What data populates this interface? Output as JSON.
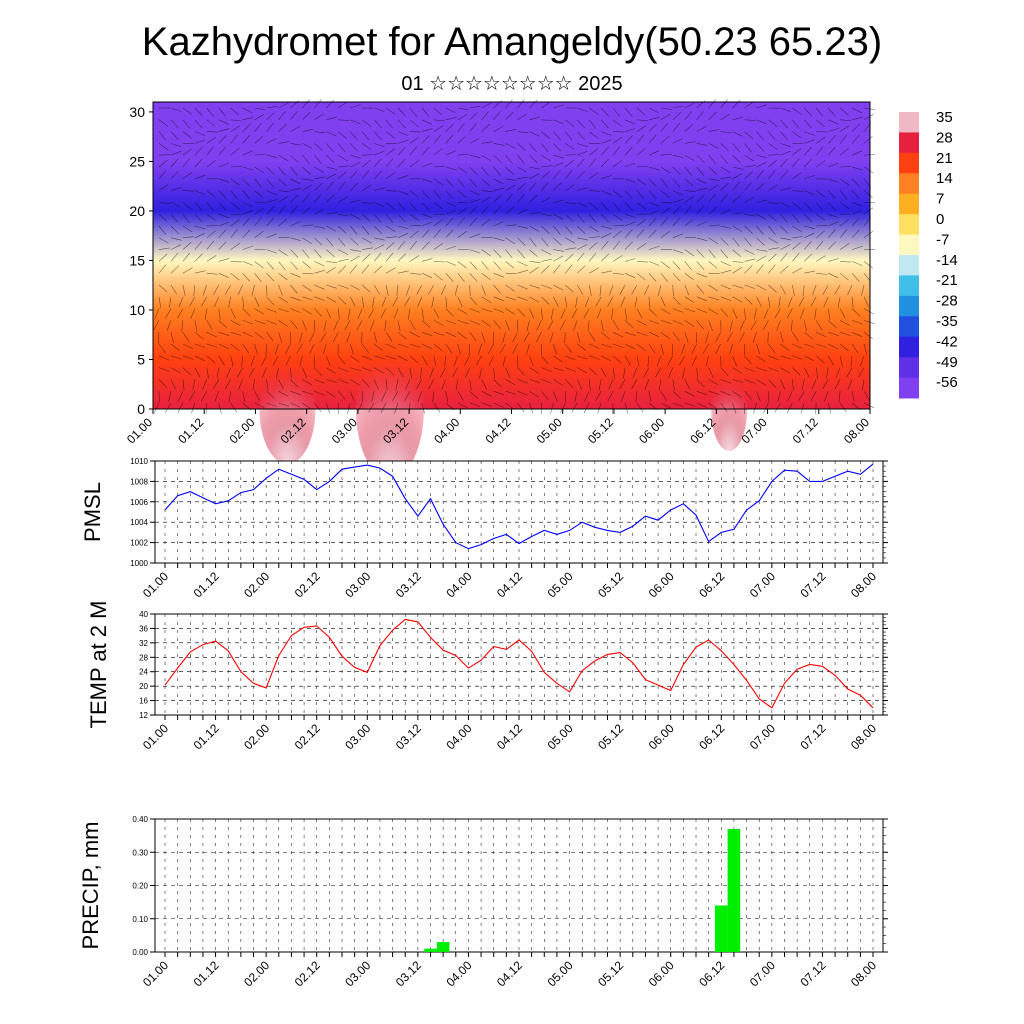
{
  "title": "Kazhydromet for Amangeldy(50.23 65.23)",
  "subtitle": "01 ☆☆☆☆☆☆☆☆ 2025",
  "chart_data": [
    {
      "type": "heatmap",
      "yticks": [
        "0",
        "5",
        "10",
        "15",
        "20",
        "25",
        "30"
      ],
      "ylim": [
        0,
        31
      ],
      "xticks": [
        "01.00",
        "01.12",
        "02.00",
        "02.12",
        "03.00",
        "03.12",
        "04.00",
        "04.12",
        "05.00",
        "05.12",
        "06.00",
        "06.12",
        "07.00",
        "07.12",
        "08.00"
      ],
      "colorbar_labels": [
        "35",
        "28",
        "21",
        "14",
        "7",
        "0",
        "-7",
        "-14",
        "-21",
        "-28",
        "-35",
        "-42",
        "-49",
        "-56"
      ],
      "colorbar_colors": [
        "#f0b8c4",
        "#e82040",
        "#ff4010",
        "#ff8020",
        "#ffb020",
        "#ffe060",
        "#fff8c0",
        "#c0e8f0",
        "#40c0e8",
        "#2090e0",
        "#2050e0",
        "#3020e0",
        "#6030e8",
        "#8040f0"
      ],
      "vertical_profile_temperature": [
        {
          "level": 0,
          "t": 30
        },
        {
          "level": 5,
          "t": 24
        },
        {
          "level": 10,
          "t": 14
        },
        {
          "level": 15,
          "t": -5
        },
        {
          "level": 20,
          "t": -40
        },
        {
          "level": 25,
          "t": -55
        },
        {
          "level": 30,
          "t": -60
        }
      ]
    },
    {
      "type": "line",
      "ylabel": "PMSL",
      "ylim": [
        1000,
        1010
      ],
      "yticks": [
        "1000",
        "1002",
        "1004",
        "1006",
        "1008",
        "1010"
      ],
      "xticks": [
        "01.00",
        "01.12",
        "02.00",
        "02.12",
        "03.00",
        "03.12",
        "04.00",
        "04.12",
        "05.00",
        "05.12",
        "06.00",
        "06.12",
        "07.00",
        "07.12",
        "08.00"
      ],
      "series_color": "#0000ff",
      "values": [
        1005.2,
        1006.6,
        1007.0,
        1006.4,
        1005.8,
        1006.1,
        1006.9,
        1007.2,
        1008.3,
        1009.2,
        1008.7,
        1008.2,
        1007.2,
        1008.0,
        1009.2,
        1009.4,
        1009.6,
        1009.3,
        1008.5,
        1006.3,
        1004.6,
        1006.3,
        1003.8,
        1002.0,
        1001.4,
        1001.8,
        1002.4,
        1002.8,
        1001.9,
        1002.6,
        1003.2,
        1002.8,
        1003.2,
        1004.0,
        1003.5,
        1003.2,
        1003.0,
        1003.6,
        1004.6,
        1004.2,
        1005.2,
        1005.8,
        1004.7,
        1002.1,
        1003.0,
        1003.3,
        1005.2,
        1006.1,
        1008.0,
        1009.1,
        1009.0,
        1008.0,
        1008.0,
        1008.5,
        1009.0,
        1008.7,
        1009.7
      ]
    },
    {
      "type": "line",
      "ylabel": "TEMP at 2 M",
      "ylim": [
        12,
        40
      ],
      "yticks": [
        "12",
        "16",
        "20",
        "24",
        "28",
        "32",
        "36",
        "40"
      ],
      "xticks": [
        "01.00",
        "01.12",
        "02.00",
        "02.12",
        "03.00",
        "03.12",
        "04.00",
        "04.12",
        "05.00",
        "05.12",
        "06.00",
        "06.12",
        "07.00",
        "07.12",
        "08.00"
      ],
      "series_color": "#ff0000",
      "values": [
        20.3,
        25.0,
        29.5,
        31.5,
        32.5,
        29.8,
        24.0,
        20.8,
        19.5,
        28.5,
        34.0,
        36.3,
        36.7,
        33.5,
        28.3,
        25.2,
        23.8,
        31.2,
        35.5,
        38.5,
        37.8,
        33.5,
        30.0,
        28.5,
        25.0,
        27.2,
        31.0,
        30.2,
        32.8,
        29.7,
        23.8,
        20.8,
        18.4,
        24.3,
        27.0,
        28.8,
        29.3,
        26.5,
        21.8,
        20.3,
        18.8,
        26.0,
        30.8,
        32.8,
        29.8,
        26.0,
        21.6,
        16.5,
        14.0,
        20.8,
        24.7,
        26.0,
        25.5,
        23.0,
        19.2,
        17.5,
        14.0
      ]
    },
    {
      "type": "bar",
      "ylabel": "PRECIP, mm",
      "ylim": [
        0,
        0.4
      ],
      "yticks": [
        "0.00",
        "0.10",
        "0.20",
        "0.30",
        "0.40"
      ],
      "xticks": [
        "01.00",
        "01.12",
        "02.00",
        "02.12",
        "03.00",
        "03.12",
        "04.00",
        "04.12",
        "05.00",
        "05.12",
        "06.00",
        "06.12",
        "07.00",
        "07.12",
        "08.00"
      ],
      "bar_color": "#00ee00",
      "bars": [
        {
          "step": 21,
          "value": 0.01
        },
        {
          "step": 22,
          "value": 0.03
        },
        {
          "step": 44,
          "value": 0.14
        },
        {
          "step": 45,
          "value": 0.37
        }
      ]
    }
  ]
}
